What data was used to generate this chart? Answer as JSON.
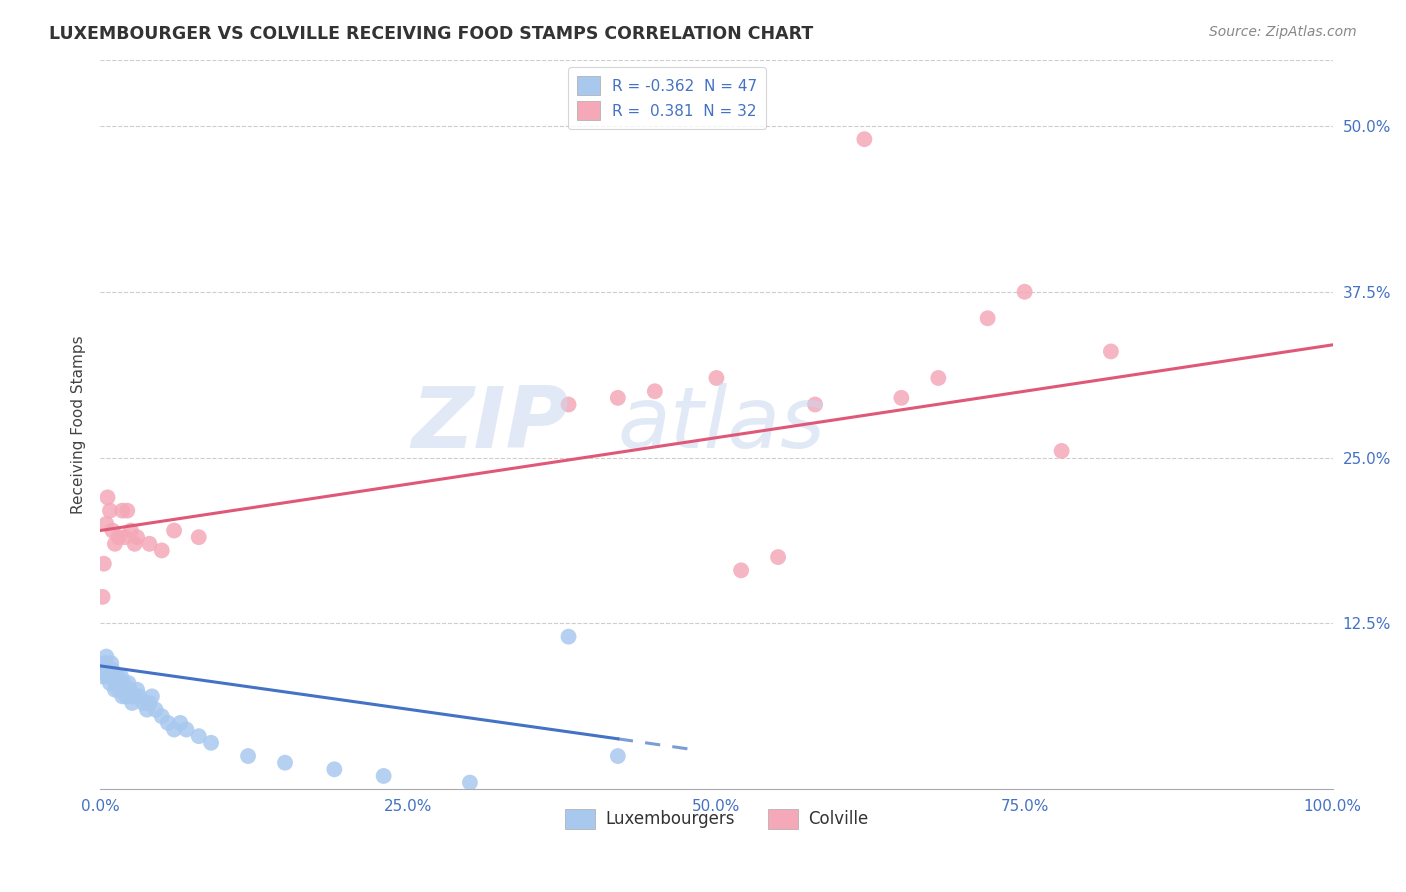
{
  "title": "LUXEMBOURGER VS COLVILLE RECEIVING FOOD STAMPS CORRELATION CHART",
  "source": "Source: ZipAtlas.com",
  "ylabel": "Receiving Food Stamps",
  "xlim": [
    0.0,
    1.0
  ],
  "ylim": [
    0.0,
    0.55
  ],
  "xticks": [
    0.0,
    0.25,
    0.5,
    0.75,
    1.0
  ],
  "xtick_labels": [
    "0.0%",
    "25.0%",
    "50.0%",
    "75.0%",
    "100.0%"
  ],
  "yticks": [
    0.125,
    0.25,
    0.375,
    0.5
  ],
  "ytick_labels": [
    "12.5%",
    "25.0%",
    "37.5%",
    "50.0%"
  ],
  "blue_R": -0.362,
  "blue_N": 47,
  "pink_R": 0.381,
  "pink_N": 32,
  "blue_color": "#a8c8ee",
  "pink_color": "#f4a8b8",
  "blue_line_color": "#4472c4",
  "pink_line_color": "#e05878",
  "legend_label_blue": "Luxembourgers",
  "legend_label_pink": "Colville",
  "blue_x": [
    0.002,
    0.003,
    0.004,
    0.005,
    0.006,
    0.007,
    0.008,
    0.009,
    0.01,
    0.011,
    0.012,
    0.013,
    0.014,
    0.015,
    0.016,
    0.017,
    0.018,
    0.019,
    0.02,
    0.021,
    0.022,
    0.023,
    0.024,
    0.025,
    0.026,
    0.028,
    0.03,
    0.032,
    0.035,
    0.038,
    0.04,
    0.042,
    0.045,
    0.05,
    0.055,
    0.06,
    0.065,
    0.07,
    0.08,
    0.09,
    0.12,
    0.15,
    0.19,
    0.23,
    0.3,
    0.38,
    0.42
  ],
  "blue_y": [
    0.085,
    0.09,
    0.095,
    0.1,
    0.085,
    0.09,
    0.08,
    0.095,
    0.09,
    0.085,
    0.075,
    0.08,
    0.085,
    0.075,
    0.08,
    0.085,
    0.07,
    0.08,
    0.075,
    0.07,
    0.075,
    0.08,
    0.075,
    0.07,
    0.065,
    0.07,
    0.075,
    0.07,
    0.065,
    0.06,
    0.065,
    0.07,
    0.06,
    0.055,
    0.05,
    0.045,
    0.05,
    0.045,
    0.04,
    0.035,
    0.025,
    0.02,
    0.015,
    0.01,
    0.005,
    0.115,
    0.025
  ],
  "pink_x": [
    0.002,
    0.003,
    0.005,
    0.006,
    0.008,
    0.01,
    0.012,
    0.015,
    0.018,
    0.02,
    0.022,
    0.025,
    0.028,
    0.03,
    0.04,
    0.05,
    0.06,
    0.08,
    0.38,
    0.42,
    0.45,
    0.5,
    0.52,
    0.55,
    0.58,
    0.62,
    0.65,
    0.68,
    0.72,
    0.75,
    0.78,
    0.82
  ],
  "pink_y": [
    0.145,
    0.17,
    0.2,
    0.22,
    0.21,
    0.195,
    0.185,
    0.19,
    0.21,
    0.19,
    0.21,
    0.195,
    0.185,
    0.19,
    0.185,
    0.18,
    0.195,
    0.19,
    0.29,
    0.295,
    0.3,
    0.31,
    0.165,
    0.175,
    0.29,
    0.49,
    0.295,
    0.31,
    0.355,
    0.375,
    0.255,
    0.33
  ],
  "blue_line_x0": 0.0,
  "blue_line_x1": 0.42,
  "blue_line_y0": 0.093,
  "blue_line_y1": 0.038,
  "pink_line_x0": 0.0,
  "pink_line_x1": 1.0,
  "pink_line_y0": 0.195,
  "pink_line_y1": 0.335
}
